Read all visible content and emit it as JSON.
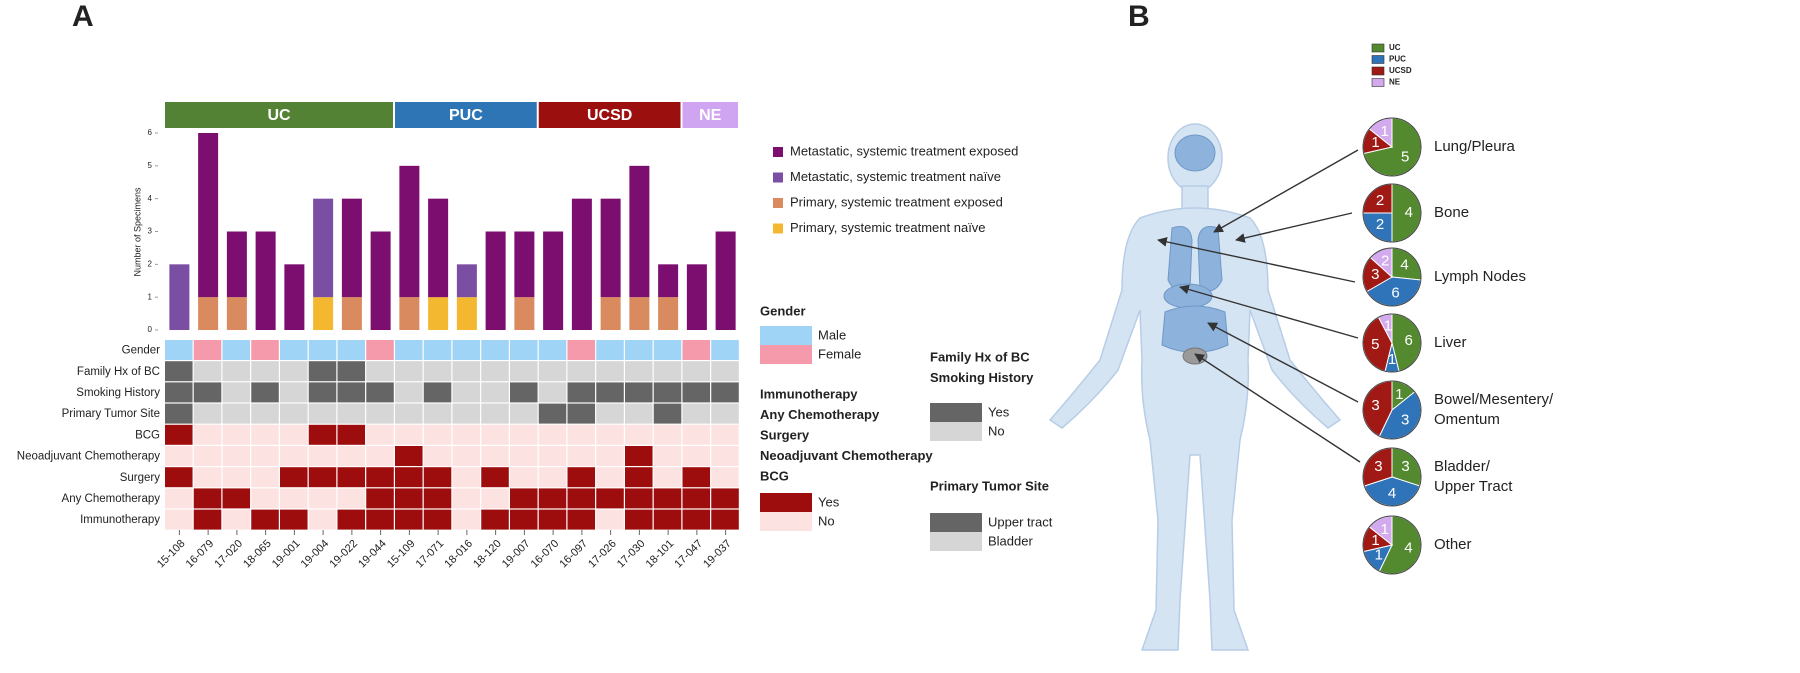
{
  "panel_labels": [
    "A",
    "B"
  ],
  "chart_data": [
    {
      "type": "bar",
      "stacked": true,
      "ylabel": "Number of Specimens",
      "categories": [
        "15-108",
        "16-079",
        "17-020",
        "18-065",
        "19-001",
        "19-004",
        "19-022",
        "19-044",
        "15-109",
        "17-071",
        "18-016",
        "18-120",
        "19-007",
        "16-070",
        "16-097",
        "17-026",
        "17-030",
        "18-101",
        "17-047",
        "19-037"
      ],
      "category_groups": [
        "UC",
        "UC",
        "UC",
        "UC",
        "UC",
        "UC",
        "UC",
        "UC",
        "PUC",
        "PUC",
        "PUC",
        "PUC",
        "PUC",
        "UCSD",
        "UCSD",
        "UCSD",
        "UCSD",
        "UCSD",
        "NE",
        "NE"
      ],
      "groups": [
        {
          "name": "UC",
          "color": "#548235"
        },
        {
          "name": "PUC",
          "color": "#2e75b6"
        },
        {
          "name": "UCSD",
          "color": "#9c0f0f"
        },
        {
          "name": "NE",
          "color": "#cfa5f2"
        }
      ],
      "series": [
        {
          "name": "Primary, systemic treatment naïve",
          "color": "#f4b730",
          "values": [
            0,
            0,
            0,
            0,
            0,
            1,
            0,
            0,
            0,
            1,
            1,
            0,
            0,
            0,
            0,
            0,
            0,
            0,
            0,
            0
          ]
        },
        {
          "name": "Primary, systemic treatment exposed",
          "color": "#d98a5e",
          "values": [
            0,
            1,
            1,
            0,
            0,
            0,
            1,
            0,
            1,
            0,
            0,
            0,
            1,
            0,
            0,
            1,
            1,
            1,
            0,
            0
          ]
        },
        {
          "name": "Metastatic, systemic treatment naïve",
          "color": "#7a4ea3",
          "values": [
            2,
            0,
            0,
            0,
            0,
            3,
            0,
            0,
            0,
            0,
            1,
            0,
            0,
            0,
            0,
            0,
            0,
            0,
            0,
            0
          ]
        },
        {
          "name": "Metastatic, systemic treatment exposed",
          "color": "#7b0e6f",
          "values": [
            0,
            5,
            2,
            3,
            2,
            0,
            3,
            3,
            4,
            3,
            0,
            3,
            2,
            3,
            4,
            3,
            4,
            1,
            2,
            3
          ]
        }
      ],
      "ylim": [
        0,
        6
      ],
      "yticks": [
        0,
        1,
        2,
        3,
        4,
        5,
        6
      ]
    },
    {
      "type": "heatmap",
      "legends": [
        {
          "title": [
            "Gender"
          ],
          "entries": [
            {
              "label": "Male",
              "color": "#9fd4f7"
            },
            {
              "label": "Female",
              "color": "#f49aaa"
            }
          ]
        },
        {
          "title": [
            "Family Hx of BC",
            "Smoking History"
          ],
          "entries": [
            {
              "label": "Yes",
              "color": "#656565"
            },
            {
              "label": "No",
              "color": "#d6d6d6"
            }
          ]
        },
        {
          "title": [
            "Immunotherapy",
            "Any Chemotherapy",
            "Surgery",
            "Neoadjuvant Chemotherapy",
            "BCG"
          ],
          "entries": [
            {
              "label": "Yes",
              "color": "#9e0d0d"
            },
            {
              "label": "No",
              "color": "#fde2e2"
            }
          ]
        },
        {
          "title": [
            "Primary Tumor Site"
          ],
          "entries": [
            {
              "label": "Upper tract",
              "color": "#656565"
            },
            {
              "label": "Bladder",
              "color": "#d6d6d6"
            }
          ]
        }
      ],
      "rows": [
        {
          "name": "Gender",
          "legend": 0,
          "values": [
            "Male",
            "Female",
            "Male",
            "Female",
            "Male",
            "Male",
            "Male",
            "Female",
            "Male",
            "Male",
            "Male",
            "Male",
            "Male",
            "Male",
            "Female",
            "Male",
            "Male",
            "Male",
            "Female",
            "Male"
          ]
        },
        {
          "name": "Family Hx of BC",
          "legend": 1,
          "values": [
            "Yes",
            "No",
            "No",
            "No",
            "No",
            "Yes",
            "Yes",
            "No",
            "No",
            "No",
            "No",
            "No",
            "No",
            "No",
            "No",
            "No",
            "No",
            "No",
            "No",
            "No"
          ]
        },
        {
          "name": "Smoking History",
          "legend": 1,
          "values": [
            "Yes",
            "Yes",
            "No",
            "Yes",
            "No",
            "Yes",
            "Yes",
            "Yes",
            "No",
            "Yes",
            "No",
            "No",
            "Yes",
            "No",
            "Yes",
            "Yes",
            "Yes",
            "Yes",
            "Yes",
            "Yes"
          ]
        },
        {
          "name": "Primary Tumor Site",
          "legend": 3,
          "values": [
            "Upper tract",
            "Bladder",
            "Bladder",
            "Bladder",
            "Bladder",
            "Bladder",
            "Bladder",
            "Bladder",
            "Bladder",
            "Bladder",
            "Bladder",
            "Bladder",
            "Bladder",
            "Upper tract",
            "Upper tract",
            "Bladder",
            "Bladder",
            "Upper tract",
            "Bladder",
            "Bladder"
          ]
        },
        {
          "name": "BCG",
          "legend": 2,
          "values": [
            "Yes",
            "No",
            "No",
            "No",
            "No",
            "Yes",
            "Yes",
            "No",
            "No",
            "No",
            "No",
            "No",
            "No",
            "No",
            "No",
            "No",
            "No",
            "No",
            "No",
            "No"
          ]
        },
        {
          "name": "Neoadjuvant Chemotherapy",
          "legend": 2,
          "values": [
            "No",
            "No",
            "No",
            "No",
            "No",
            "No",
            "No",
            "No",
            "Yes",
            "No",
            "No",
            "No",
            "No",
            "No",
            "No",
            "No",
            "Yes",
            "No",
            "No",
            "No"
          ]
        },
        {
          "name": "Surgery",
          "legend": 2,
          "values": [
            "Yes",
            "No",
            "No",
            "No",
            "Yes",
            "Yes",
            "Yes",
            "Yes",
            "Yes",
            "Yes",
            "No",
            "Yes",
            "No",
            "No",
            "Yes",
            "No",
            "Yes",
            "No",
            "Yes",
            "No"
          ]
        },
        {
          "name": "Any Chemotherapy",
          "legend": 2,
          "values": [
            "No",
            "Yes",
            "Yes",
            "No",
            "No",
            "No",
            "No",
            "Yes",
            "Yes",
            "Yes",
            "No",
            "No",
            "Yes",
            "Yes",
            "Yes",
            "Yes",
            "Yes",
            "Yes",
            "Yes",
            "Yes"
          ]
        },
        {
          "name": "Immunotherapy",
          "legend": 2,
          "values": [
            "No",
            "Yes",
            "No",
            "Yes",
            "Yes",
            "No",
            "Yes",
            "Yes",
            "Yes",
            "Yes",
            "No",
            "Yes",
            "Yes",
            "Yes",
            "Yes",
            "No",
            "Yes",
            "Yes",
            "Yes",
            "Yes"
          ]
        }
      ]
    },
    {
      "type": "pie",
      "legend": [
        {
          "name": "UC",
          "color": "#538a30"
        },
        {
          "name": "PUC",
          "color": "#2f74b8"
        },
        {
          "name": "UCSD",
          "color": "#a01914"
        },
        {
          "name": "NE",
          "color": "#d3aaee"
        }
      ],
      "pies": [
        {
          "label": [
            "Lung/Pleura"
          ],
          "values": [
            5,
            null,
            1,
            1
          ]
        },
        {
          "label": [
            "Bone"
          ],
          "values": [
            4,
            2,
            2,
            null
          ]
        },
        {
          "label": [
            "Lymph Nodes"
          ],
          "values": [
            4,
            6,
            3,
            2
          ]
        },
        {
          "label": [
            "Liver"
          ],
          "values": [
            6,
            1,
            5,
            1
          ]
        },
        {
          "label": [
            "Bowel/Mesentery/",
            "Omentum"
          ],
          "values": [
            1,
            3,
            3,
            null
          ]
        },
        {
          "label": [
            "Bladder/",
            "Upper Tract"
          ],
          "values": [
            3,
            4,
            3,
            null
          ]
        },
        {
          "label": [
            "Other"
          ],
          "values": [
            4,
            1,
            1,
            1
          ]
        }
      ]
    }
  ]
}
